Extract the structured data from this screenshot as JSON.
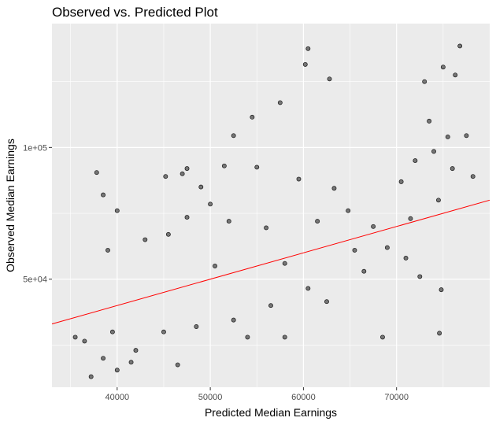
{
  "chart_data": {
    "type": "scatter",
    "title": "Observed vs. Predicted Plot",
    "xlabel": "Predicted Median Earnings",
    "ylabel": "Observed Median Earnings",
    "xlim": [
      33000,
      80000
    ],
    "ylim": [
      9000,
      147000
    ],
    "x_ticks": [
      {
        "value": 40000,
        "label": "40000"
      },
      {
        "value": 50000,
        "label": "50000"
      },
      {
        "value": 60000,
        "label": "60000"
      },
      {
        "value": 70000,
        "label": "70000"
      }
    ],
    "y_ticks": [
      {
        "value": 50000,
        "label": "5e+04"
      },
      {
        "value": 100000,
        "label": "1e+05"
      }
    ],
    "grid": true,
    "background_color": "#ebebeb",
    "grid_color": "#ffffff",
    "point_color": "#000000",
    "point_alpha": 0.5,
    "reference_line": {
      "type": "y=x",
      "color": "#ff0000"
    },
    "points": [
      [
        37800,
        90500
      ],
      [
        38500,
        82000
      ],
      [
        40000,
        76000
      ],
      [
        45200,
        89000
      ],
      [
        47000,
        90000
      ],
      [
        47500,
        92000
      ],
      [
        49000,
        85000
      ],
      [
        50000,
        78500
      ],
      [
        51500,
        93000
      ],
      [
        52500,
        104500
      ],
      [
        54500,
        111500
      ],
      [
        55000,
        92500
      ],
      [
        57500,
        117000
      ],
      [
        59500,
        88000
      ],
      [
        60200,
        131500
      ],
      [
        60500,
        137500
      ],
      [
        62800,
        126000
      ],
      [
        63300,
        84500
      ],
      [
        64800,
        76000
      ],
      [
        67500,
        70000
      ],
      [
        70500,
        87000
      ],
      [
        71500,
        73000
      ],
      [
        72000,
        95000
      ],
      [
        73000,
        125000
      ],
      [
        73500,
        110000
      ],
      [
        74000,
        98500
      ],
      [
        74500,
        80000
      ],
      [
        75000,
        130500
      ],
      [
        75500,
        104000
      ],
      [
        76000,
        92000
      ],
      [
        76300,
        127500
      ],
      [
        76800,
        138500
      ],
      [
        77500,
        104500
      ],
      [
        78200,
        89000
      ],
      [
        74800,
        46000
      ],
      [
        74600,
        29500
      ],
      [
        68500,
        28000
      ],
      [
        58000,
        28000
      ],
      [
        54000,
        28000
      ],
      [
        39500,
        30000
      ],
      [
        36500,
        26500
      ],
      [
        35500,
        28000
      ],
      [
        37200,
        13000
      ],
      [
        40000,
        15500
      ],
      [
        38500,
        20000
      ],
      [
        41500,
        18500
      ],
      [
        42000,
        23000
      ],
      [
        46500,
        17500
      ],
      [
        39000,
        61000
      ],
      [
        43000,
        65000
      ],
      [
        45500,
        67000
      ],
      [
        47500,
        73500
      ],
      [
        52000,
        72000
      ],
      [
        56000,
        69500
      ],
      [
        61500,
        72000
      ],
      [
        65500,
        61000
      ],
      [
        66500,
        53000
      ],
      [
        69000,
        62000
      ],
      [
        71000,
        58000
      ],
      [
        72500,
        51000
      ],
      [
        60500,
        46500
      ],
      [
        62500,
        41500
      ],
      [
        56500,
        40000
      ],
      [
        52500,
        34500
      ],
      [
        48500,
        32000
      ],
      [
        45000,
        30000
      ],
      [
        50500,
        55000
      ],
      [
        58000,
        56000
      ]
    ]
  }
}
